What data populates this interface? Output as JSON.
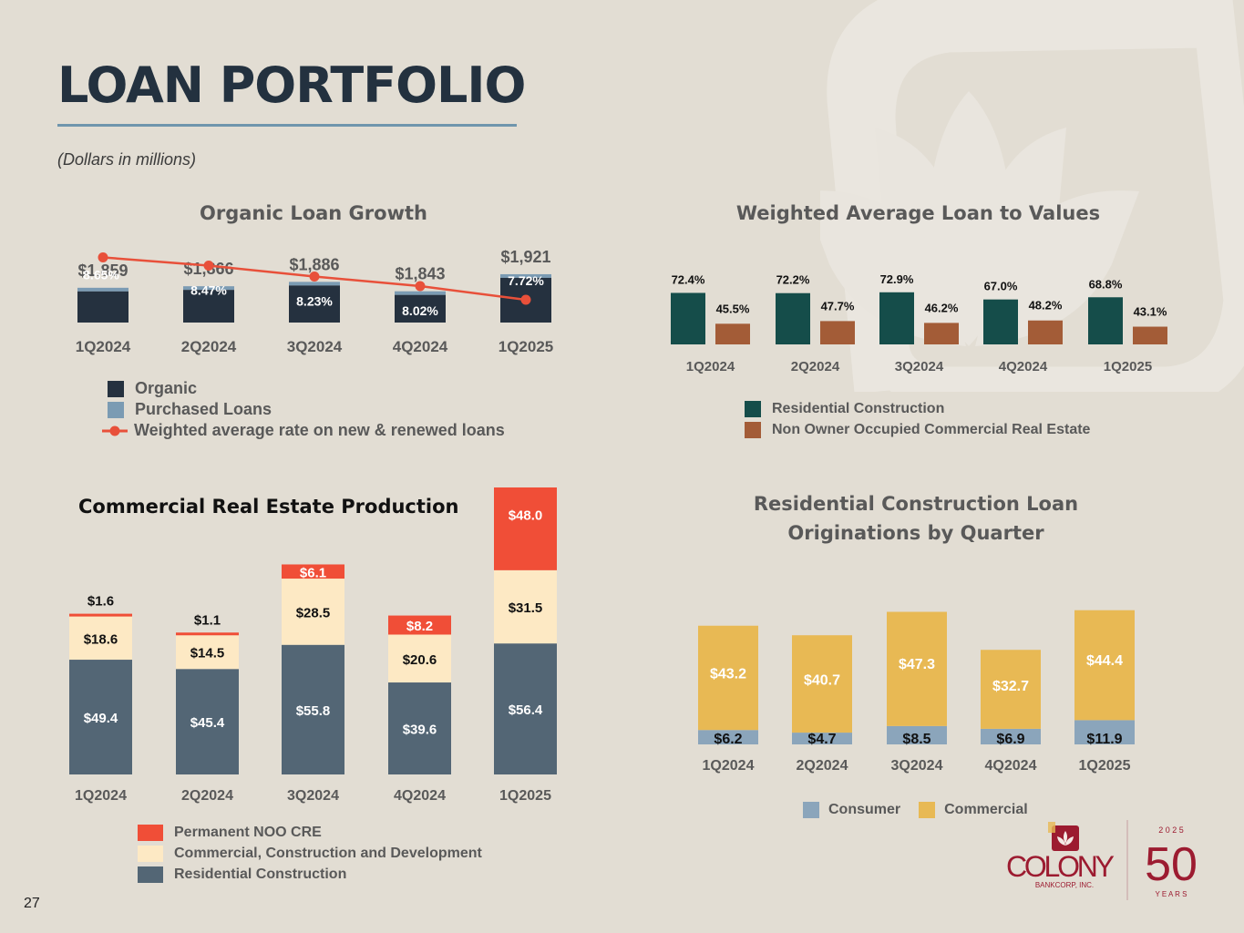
{
  "page": {
    "title": "LOAN PORTFOLIO",
    "subtitle": "(Dollars in millions)",
    "page_number": "27",
    "logo": {
      "name": "COLONY",
      "tagline": "BANKCORP, INC.",
      "anniversary_year": "2 0 2 5",
      "anniversary_number": "50",
      "anniversary_word": "Y E A R S"
    },
    "colors": {
      "background": "#e2ddd3",
      "title": "#23313f",
      "organic": "#25313f",
      "purchased": "#7b9bb3",
      "rate_line": "#e8503a",
      "res_construction_ltv": "#154d4a",
      "noo_cre_ltv": "#a35c37",
      "permanent_noo_cre": "#f04e37",
      "ccd": "#fde9c4",
      "cre_res_construction": "#536675",
      "consumer": "#8ba5bb",
      "commercial": "#e8b954",
      "logo_red": "#9c1b30"
    }
  },
  "chart_data": [
    {
      "id": "organic_loan_growth",
      "type": "bar",
      "title": "Organic Loan Growth",
      "categories": [
        "1Q2024",
        "2Q2024",
        "3Q2024",
        "4Q2024",
        "1Q2025"
      ],
      "total_labels": [
        "$1,859",
        "$1,866",
        "$1,886",
        "$1,843",
        "$1,921"
      ],
      "totals": [
        1859,
        1866,
        1886,
        1843,
        1921
      ],
      "series": [
        {
          "name": "Organic",
          "kind": "bar",
          "values_share_of_total": [
            0.97,
            0.97,
            0.97,
            0.97,
            0.97
          ]
        },
        {
          "name": "Purchased Loans",
          "kind": "bar",
          "values_share_of_total": [
            0.03,
            0.03,
            0.03,
            0.03,
            0.03
          ]
        },
        {
          "name": "Weighted average rate on new & renewed loans",
          "kind": "line",
          "values": [
            8.65,
            8.47,
            8.23,
            8.02,
            7.72
          ],
          "labels": [
            "8.65%",
            "8.47%",
            "8.23%",
            "8.02%",
            "7.72%"
          ]
        }
      ],
      "ylim": [
        1700,
        1950
      ],
      "rate_ylim": [
        7.3,
        8.8
      ],
      "legend_position": "bottom-left",
      "xlabel": "",
      "ylabel": ""
    },
    {
      "id": "weighted_average_ltv",
      "type": "bar",
      "title": "Weighted Average Loan to Values",
      "categories": [
        "1Q2024",
        "2Q2024",
        "3Q2024",
        "4Q2024",
        "1Q2025"
      ],
      "series": [
        {
          "name": "Residential Construction",
          "values": [
            72.4,
            72.2,
            72.9,
            67.0,
            68.8
          ],
          "labels": [
            "72.4%",
            "72.2%",
            "72.9%",
            "67.0%",
            "68.8%"
          ]
        },
        {
          "name": "Non Owner Occupied Commercial Real Estate",
          "values": [
            45.5,
            47.7,
            46.2,
            48.2,
            43.1
          ],
          "labels": [
            "45.5%",
            "47.7%",
            "46.2%",
            "48.2%",
            "43.1%"
          ]
        }
      ],
      "ylim": [
        0,
        80
      ],
      "legend_position": "bottom-left",
      "xlabel": "",
      "ylabel": ""
    },
    {
      "id": "cre_production",
      "type": "bar",
      "stacked": true,
      "title": "Commercial Real Estate Production",
      "categories": [
        "1Q2024",
        "2Q2024",
        "3Q2024",
        "4Q2024",
        "1Q2025"
      ],
      "series": [
        {
          "name": "Residential Construction",
          "values": [
            49.4,
            45.4,
            55.8,
            39.6,
            56.4
          ],
          "labels": [
            "$49.4",
            "$45.4",
            "$55.8",
            "$39.6",
            "$56.4"
          ]
        },
        {
          "name": "Commercial, Construction and Development",
          "values": [
            18.6,
            14.5,
            28.5,
            20.6,
            31.5
          ],
          "labels": [
            "$18.6",
            "$14.5",
            "$28.5",
            "$20.6",
            "$31.5"
          ]
        },
        {
          "name": "Permanent NOO CRE",
          "values": [
            1.6,
            1.1,
            6.1,
            8.2,
            48.0
          ],
          "labels": [
            "$1.6",
            "$1.1",
            "$6.1",
            "$8.2",
            "$48.0"
          ]
        }
      ],
      "legend_order": [
        "Permanent NOO CRE",
        "Commercial, Construction and Development",
        "Residential Construction"
      ],
      "ylim": [
        0,
        136
      ],
      "legend_position": "bottom-left",
      "xlabel": "",
      "ylabel": ""
    },
    {
      "id": "res_construction_originations",
      "type": "bar",
      "stacked": true,
      "title": "Residential Construction Loan Originations by Quarter",
      "title_lines": [
        "Residential Construction Loan",
        "Originations by Quarter"
      ],
      "categories": [
        "1Q2024",
        "2Q2024",
        "3Q2024",
        "4Q2024",
        "1Q2025"
      ],
      "series": [
        {
          "name": "Consumer",
          "values": [
            6.2,
            4.7,
            8.5,
            6.9,
            11.9
          ],
          "labels": [
            "$6.2",
            "$4.7",
            "$8.5",
            "$6.9",
            "$11.9"
          ]
        },
        {
          "name": "Commercial",
          "values": [
            43.2,
            40.7,
            47.3,
            32.7,
            44.4
          ],
          "labels": [
            "$43.2",
            "$40.7",
            "$47.3",
            "$32.7",
            "$44.4"
          ]
        }
      ],
      "ylim": [
        0,
        60
      ],
      "legend_position": "bottom-center",
      "xlabel": "",
      "ylabel": ""
    }
  ]
}
